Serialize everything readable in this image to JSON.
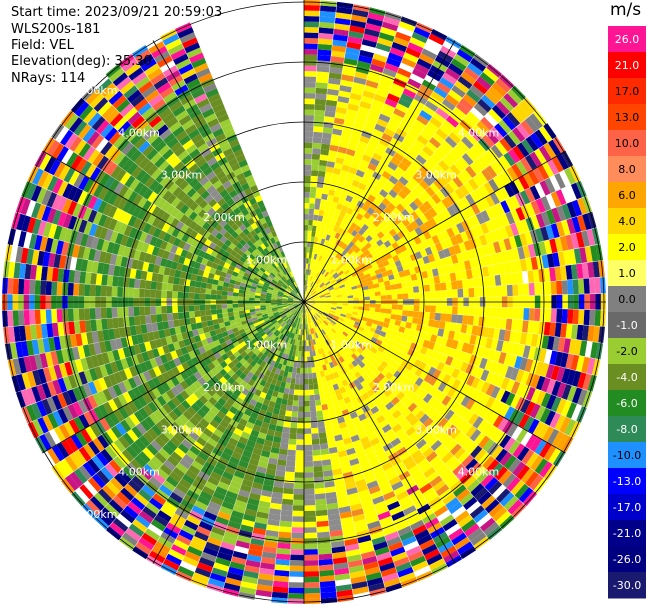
{
  "header": {
    "start_time": "Start time: 2023/09/21 20:59:03",
    "instrument": "WLS200s-181",
    "field": "Field: VEL",
    "elevation": "Elevation(deg): 35.30",
    "nrays": "NRays: 114"
  },
  "colorbar": {
    "unit": "m/s",
    "ticks": [
      "26.0",
      "21.0",
      "17.0",
      "13.0",
      "10.0",
      "8.0",
      "6.0",
      "4.0",
      "2.0",
      "1.0",
      "0.0",
      "-1.0",
      "-2.0",
      "-4.0",
      "-6.0",
      "-8.0",
      "-10.0",
      "-13.0",
      "-17.0",
      "-21.0",
      "-26.0",
      "-30.0"
    ],
    "colors": [
      "#ff1493",
      "#ff0000",
      "#ff2a00",
      "#ff4500",
      "#ff6347",
      "#ff8c5a",
      "#ffa500",
      "#ffd700",
      "#ffff00",
      "#ffff66",
      "#808080",
      "#696969",
      "#9acd32",
      "#6b8e23",
      "#228b22",
      "#2e8b57",
      "#1e90ff",
      "#0000ff",
      "#0000cd",
      "#00008b",
      "#000080",
      "#191970"
    ]
  },
  "chart_data": {
    "type": "heatmap",
    "title": "",
    "field": "VEL",
    "unit": "m/s",
    "projection": "polar PPI",
    "range_rings_km": [
      1.0,
      2.0,
      3.0,
      4.0,
      5.0
    ],
    "ring_labels": {
      "nw": [
        "1.00km",
        "2.00km",
        "3.00km",
        "4.00km",
        "5.00km"
      ],
      "ne": [
        "1.00km",
        "2.00km",
        "3.00km",
        "4.00km"
      ],
      "sw": [
        "1.00km",
        "2.00km",
        "3.00km",
        "4.00km",
        "5.00km"
      ],
      "se": [
        "1.00km",
        "2.00km",
        "3.00km",
        "4.00km"
      ]
    },
    "n_rays": 114,
    "max_range_km": 5.5,
    "elevation_deg": 35.3,
    "no_data_sector_deg": [
      337,
      360
    ],
    "pattern": "Positive (yellow/orange) velocities east of the site, negative (green) velocities west; noisy speckle beyond ~4 km"
  }
}
